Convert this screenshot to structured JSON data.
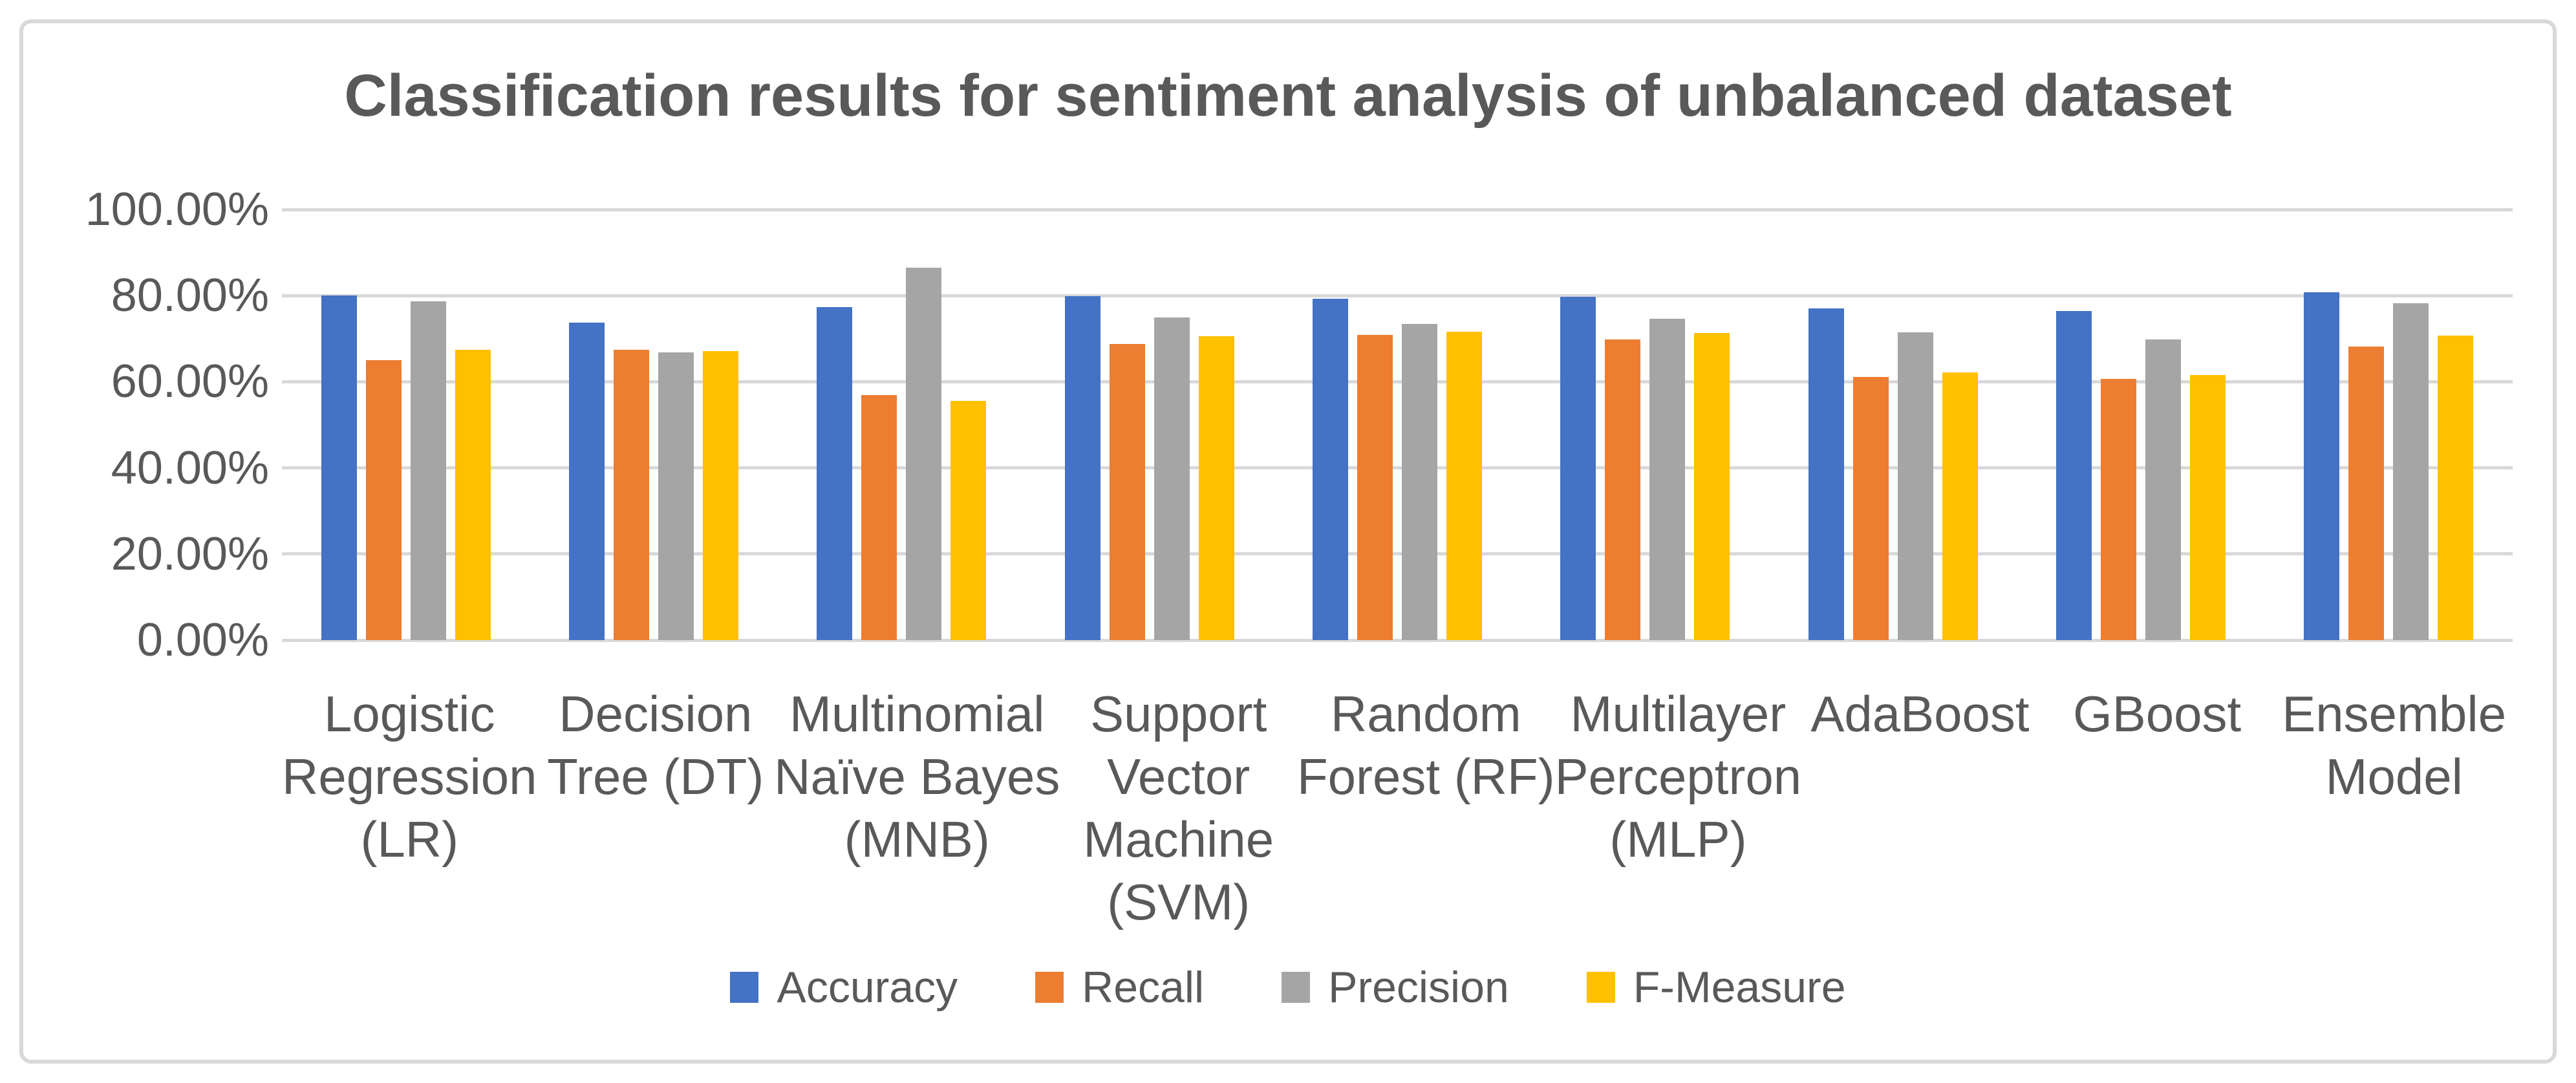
{
  "title": "Classification results for sentiment analysis of unbalanced dataset",
  "colors": {
    "accuracy": "#4472C4",
    "recall": "#ED7D31",
    "precision": "#A5A5A5",
    "f_measure": "#FFC000",
    "gridline": "#D9D9D9",
    "border": "#D9D9D9",
    "text": "#595959",
    "background": "#FFFFFF"
  },
  "chart_data": {
    "type": "bar",
    "title": "Classification results for sentiment analysis of unbalanced dataset",
    "categories": [
      "Logistic\nRegression\n(LR)",
      "Decision\nTree (DT)",
      "Multinomial\nNaïve Bayes\n(MNB)",
      "Support\nVector\nMachine\n(SVM)",
      "Random\nForest (RF)",
      "Multilayer\nPerceptron\n(MLP)",
      "AdaBoost",
      "GBoost",
      "Ensemble\nModel"
    ],
    "series": [
      {
        "name": "Accuracy",
        "color": "#4472C4",
        "values": [
          80.0,
          73.8,
          77.4,
          79.9,
          79.3,
          79.8,
          77.0,
          76.5,
          80.8
        ]
      },
      {
        "name": "Recall",
        "color": "#ED7D31",
        "values": [
          65.0,
          67.4,
          56.9,
          68.7,
          70.8,
          69.8,
          61.1,
          60.7,
          68.1
        ]
      },
      {
        "name": "Precision",
        "color": "#A5A5A5",
        "values": [
          78.7,
          66.8,
          86.5,
          75.0,
          73.4,
          74.6,
          71.5,
          69.8,
          78.2
        ]
      },
      {
        "name": "F-Measure",
        "color": "#FFC000",
        "values": [
          67.4,
          67.1,
          55.6,
          70.5,
          71.6,
          71.3,
          62.2,
          61.6,
          70.7
        ]
      }
    ],
    "y_axis": {
      "min": 0,
      "max": 100,
      "step": 20,
      "ticks": [
        "0.00%",
        "20.00%",
        "40.00%",
        "60.00%",
        "80.00%",
        "100.00%"
      ],
      "unit": "%"
    },
    "xlabel": "",
    "ylabel": "",
    "grid": true,
    "legend": {
      "position": "bottom",
      "items": [
        "Accuracy",
        "Recall",
        "Precision",
        "F-Measure"
      ]
    }
  }
}
